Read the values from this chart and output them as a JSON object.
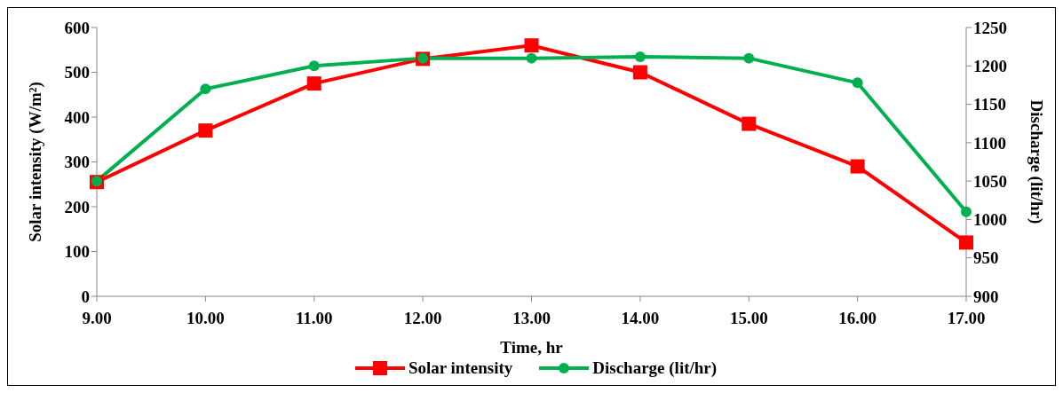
{
  "chart_data": {
    "type": "line",
    "xlabel": "Time, hr",
    "ylabel": "Solar intensity (W/m²)",
    "y2label": "Discharge (lit/hr)",
    "categories": [
      "9.00",
      "10.00",
      "11.00",
      "12.00",
      "13.00",
      "14.00",
      "15.00",
      "16.00",
      "17.00"
    ],
    "series": [
      {
        "name": "Solar intensity",
        "color": "#ff0000",
        "marker": "square",
        "values": [
          255,
          370,
          475,
          530,
          560,
          500,
          385,
          290,
          120
        ]
      },
      {
        "name": "Discharge (lit/hr)",
        "color": "#00b050",
        "marker": "circle",
        "axis": "y2",
        "values": [
          1050,
          1170,
          1200,
          1210,
          1210,
          1212,
          1210,
          1178,
          1010
        ]
      }
    ],
    "ylim": [
      0,
      600
    ],
    "yticks": [
      0,
      100,
      200,
      300,
      400,
      500,
      600
    ],
    "y2lim": [
      900,
      1250
    ],
    "y2ticks": [
      900,
      950,
      1000,
      1050,
      1100,
      1150,
      1200,
      1250
    ],
    "grid": false,
    "legend": "bottom",
    "line_style": "solid"
  }
}
